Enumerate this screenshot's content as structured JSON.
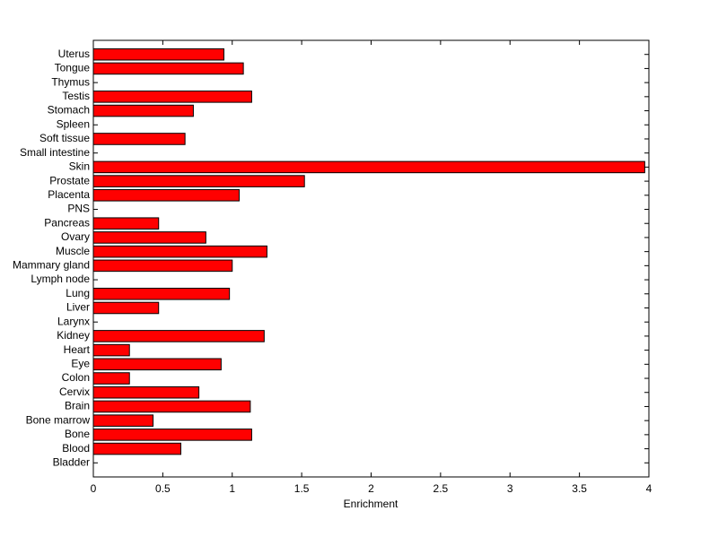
{
  "chart_data": {
    "type": "barh",
    "xlabel": "Enrichment",
    "color": "#ff0000",
    "categories": [
      "Bladder",
      "Blood",
      "Bone",
      "Bone marrow",
      "Brain",
      "Cervix",
      "Colon",
      "Eye",
      "Heart",
      "Kidney",
      "Larynx",
      "Liver",
      "Lung",
      "Lymph node",
      "Mammary gland",
      "Muscle",
      "Ovary",
      "Pancreas",
      "PNS",
      "Placenta",
      "Prostate",
      "Skin",
      "Small intestine",
      "Soft tissue",
      "Spleen",
      "Stomach",
      "Testis",
      "Thymus",
      "Tongue",
      "Uterus"
    ],
    "values": [
      0,
      0.63,
      1.14,
      0.43,
      1.13,
      0.76,
      0.26,
      0.92,
      0.26,
      1.23,
      0,
      0.47,
      0.98,
      0,
      1.0,
      1.25,
      0.81,
      0.47,
      0,
      1.05,
      1.52,
      3.97,
      0,
      0.66,
      0,
      0.72,
      1.14,
      0,
      1.08,
      0.94
    ],
    "xlim": [
      0,
      4
    ],
    "xticks": [
      0,
      0.5,
      1,
      1.5,
      2,
      2.5,
      3,
      3.5,
      4
    ]
  }
}
